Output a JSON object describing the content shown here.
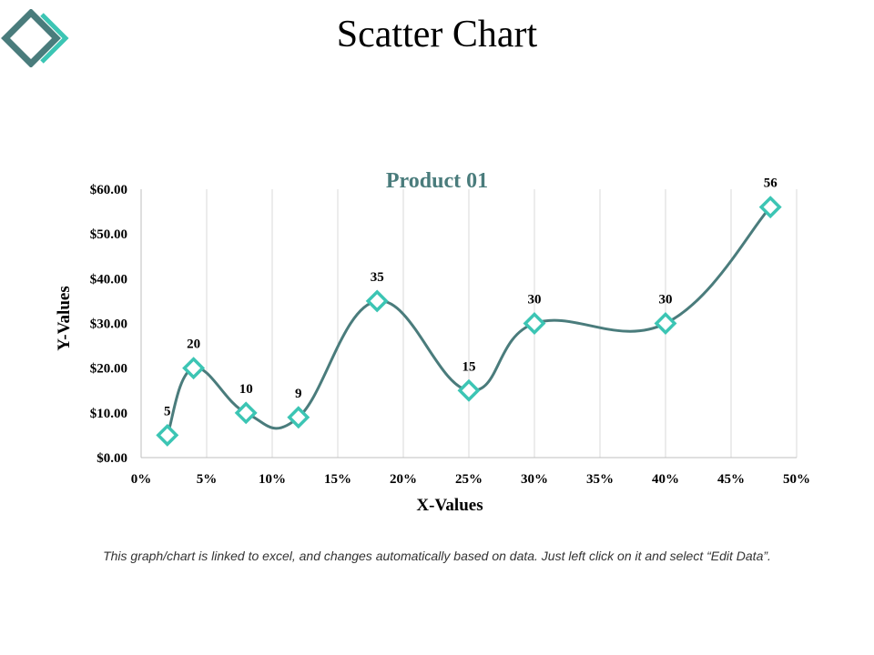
{
  "slide": {
    "title": "Scatter Chart",
    "footnote": "This graph/chart is linked to excel, and changes automatically based on data. Just left click on it and select “Edit Data”."
  },
  "colors": {
    "line": "#4a7c7c",
    "marker": "#3cc5b4",
    "chart_title": "#4a7c7c",
    "logo_dark": "#4a7c7c",
    "logo_light": "#3cc5b4"
  },
  "chart_data": {
    "type": "scatter",
    "title": "Product 01",
    "xlabel": "X-Values",
    "ylabel": "Y-Values",
    "xlim": [
      0,
      0.5
    ],
    "ylim": [
      0,
      60
    ],
    "x_ticks": [
      "0%",
      "5%",
      "10%",
      "15%",
      "20%",
      "25%",
      "30%",
      "35%",
      "40%",
      "45%",
      "50%"
    ],
    "y_ticks": [
      "$0.00",
      "$10.00",
      "$20.00",
      "$30.00",
      "$40.00",
      "$50.00",
      "$60.00"
    ],
    "grid": "vertical",
    "smooth_line": true,
    "marker": "diamond",
    "series": [
      {
        "x": [
          0.02,
          0.04,
          0.08,
          0.12,
          0.18,
          0.25,
          0.3,
          0.4,
          0.48
        ],
        "y": [
          5,
          20,
          10,
          9,
          35,
          15,
          30,
          30,
          56
        ],
        "labels": [
          "5",
          "20",
          "10",
          "9",
          "35",
          "15",
          "30",
          "30",
          "56"
        ]
      }
    ]
  }
}
